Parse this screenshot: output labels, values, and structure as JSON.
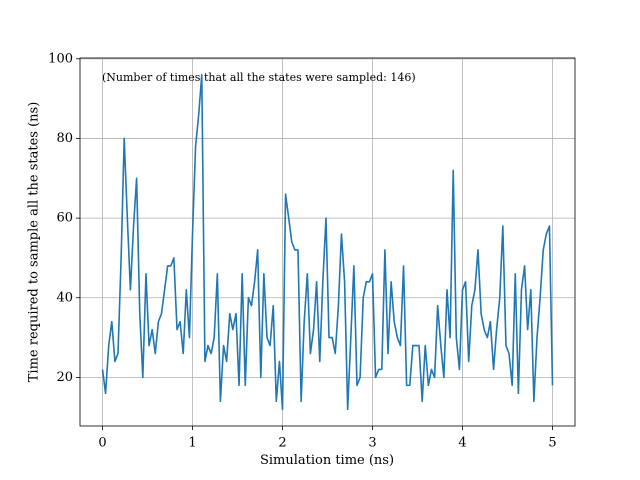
{
  "chart_data": {
    "type": "line",
    "annotation": "(Number of times that all the states were sampled: 146)",
    "xlabel": "Simulation time (ns)",
    "ylabel": "Time required to sample all the states (ns)",
    "x": [
      0,
      0.034,
      0.069,
      0.103,
      0.138,
      0.172,
      0.207,
      0.241,
      0.276,
      0.31,
      0.345,
      0.379,
      0.414,
      0.448,
      0.483,
      0.517,
      0.552,
      0.586,
      0.621,
      0.655,
      0.69,
      0.724,
      0.759,
      0.793,
      0.828,
      0.862,
      0.897,
      0.931,
      0.966,
      1,
      1.034,
      1.069,
      1.103,
      1.138,
      1.172,
      1.207,
      1.241,
      1.276,
      1.31,
      1.345,
      1.379,
      1.414,
      1.448,
      1.483,
      1.517,
      1.552,
      1.586,
      1.621,
      1.655,
      1.69,
      1.724,
      1.759,
      1.793,
      1.828,
      1.862,
      1.897,
      1.931,
      1.966,
      2,
      2.034,
      2.069,
      2.103,
      2.138,
      2.172,
      2.207,
      2.241,
      2.276,
      2.31,
      2.345,
      2.379,
      2.414,
      2.448,
      2.483,
      2.517,
      2.552,
      2.586,
      2.621,
      2.655,
      2.69,
      2.724,
      2.759,
      2.793,
      2.828,
      2.862,
      2.897,
      2.931,
      2.966,
      3,
      3.034,
      3.069,
      3.103,
      3.138,
      3.172,
      3.207,
      3.241,
      3.276,
      3.31,
      3.345,
      3.379,
      3.414,
      3.448,
      3.483,
      3.517,
      3.552,
      3.586,
      3.621,
      3.655,
      3.69,
      3.724,
      3.759,
      3.793,
      3.828,
      3.862,
      3.897,
      3.931,
      3.966,
      4,
      4.034,
      4.069,
      4.103,
      4.138,
      4.172,
      4.207,
      4.241,
      4.276,
      4.31,
      4.345,
      4.379,
      4.414,
      4.448,
      4.483,
      4.517,
      4.552,
      4.586,
      4.621,
      4.655,
      4.69,
      4.724,
      4.759,
      4.793,
      4.828,
      4.862,
      4.897,
      4.931,
      4.966,
      5
    ],
    "series": [
      {
        "color": "#1f77b4",
        "values": [
          22,
          16,
          28,
          34,
          24,
          26,
          50,
          80,
          60,
          42,
          58,
          70,
          36,
          20,
          46,
          28,
          32,
          26,
          34,
          36,
          42,
          48,
          48,
          50,
          32,
          34,
          26,
          42,
          30,
          56,
          78,
          86,
          96,
          24,
          28,
          26,
          30,
          46,
          14,
          28,
          24,
          36,
          32,
          36,
          18,
          46,
          18,
          40,
          38,
          44,
          52,
          20,
          46,
          30,
          28,
          38,
          14,
          24,
          12,
          66,
          60,
          54,
          52,
          52,
          14,
          34,
          46,
          26,
          32,
          44,
          24,
          44,
          60,
          30,
          30,
          26,
          38,
          56,
          44,
          12,
          30,
          48,
          18,
          20,
          40,
          44,
          44,
          46,
          20,
          22,
          22,
          52,
          26,
          44,
          34,
          30,
          28,
          48,
          18,
          18,
          28,
          28,
          28,
          14,
          28,
          18,
          22,
          20,
          38,
          28,
          20,
          42,
          30,
          72,
          30,
          22,
          42,
          44,
          24,
          38,
          42,
          52,
          36,
          32,
          30,
          34,
          22,
          32,
          40,
          58,
          28,
          26,
          18,
          46,
          16,
          42,
          48,
          32,
          42,
          14,
          30,
          40,
          52,
          56,
          58,
          18
        ]
      }
    ],
    "xlim": [
      -0.25,
      5.25
    ],
    "ylim": [
      7.8,
      100.2
    ],
    "xticks": [
      0,
      1,
      2,
      3,
      4,
      5
    ],
    "yticks": [
      20,
      40,
      60,
      80,
      100
    ],
    "grid": true
  }
}
